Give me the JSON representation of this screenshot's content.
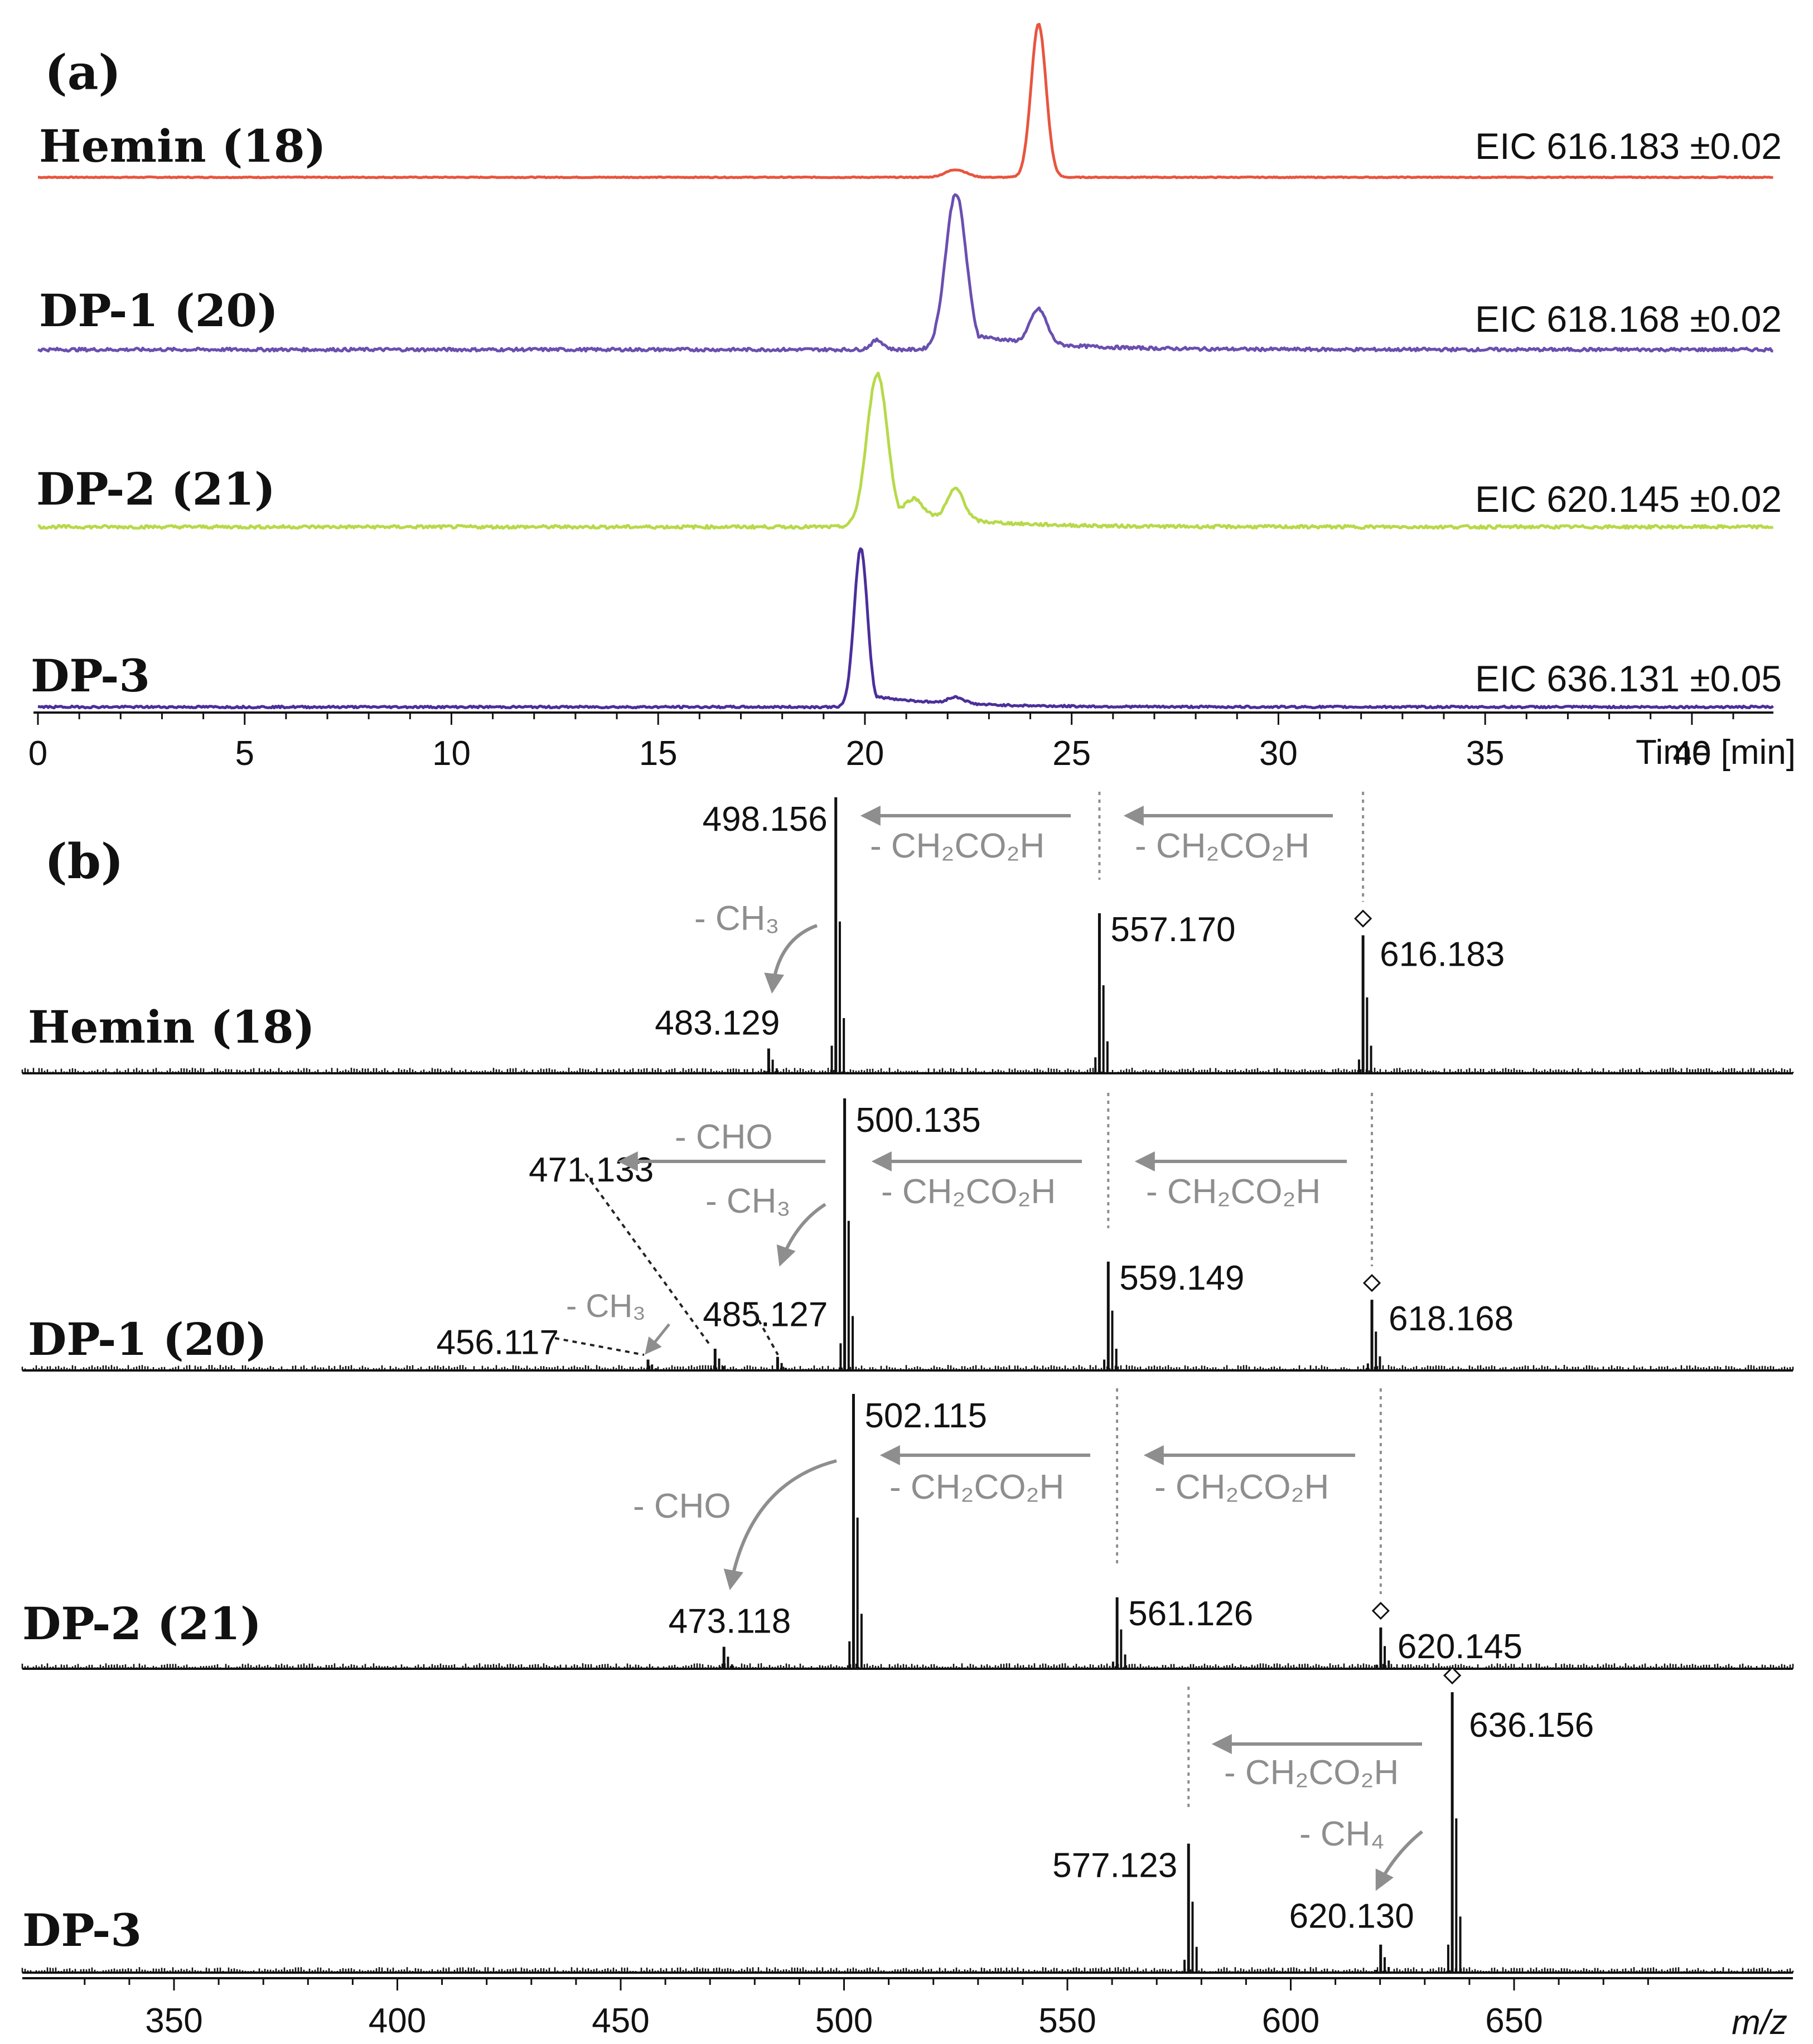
{
  "chart_data": [
    {
      "type": "line",
      "panel_label": "(a)",
      "xlabel": "Time [min]",
      "xlim": [
        0,
        50
      ],
      "x_ticks": [
        "0",
        "5",
        "10",
        "15",
        "20",
        "25",
        "30",
        "35",
        "40"
      ],
      "series": [
        {
          "name": "Hemin (18)",
          "eic": "EIC 616.183 ±0.02",
          "color": "#e8553f",
          "peaks": [
            {
              "rt": 24.2,
              "rel": 1.0,
              "width": 0.18
            },
            {
              "rt": 22.2,
              "rel": 0.05,
              "width": 0.25
            }
          ],
          "noise": 0.006
        },
        {
          "name": "DP-1 (20)",
          "eic": "EIC 618.168 ±0.02",
          "color": "#6a4fb0",
          "peaks": [
            {
              "rt": 22.2,
              "rel": 1.0,
              "width": 0.25
            },
            {
              "rt": 24.2,
              "rel": 0.22,
              "width": 0.2
            },
            {
              "rt": 20.3,
              "rel": 0.06,
              "width": 0.15
            }
          ],
          "tail": 0.12,
          "noise": 0.02
        },
        {
          "name": "DP-2 (21)",
          "eic": "EIC 620.145 ±0.02",
          "color": "#b7d94a",
          "peaks": [
            {
              "rt": 20.3,
              "rel": 1.0,
              "width": 0.25
            },
            {
              "rt": 22.2,
              "rel": 0.2,
              "width": 0.2
            },
            {
              "rt": 21.2,
              "rel": 0.1,
              "width": 0.2
            }
          ],
          "tail": 0.14,
          "noise": 0.02
        },
        {
          "name": "DP-3",
          "eic": "EIC 636.131 ±0.05",
          "color": "#4b2f9a",
          "peaks": [
            {
              "rt": 19.9,
              "rel": 1.0,
              "width": 0.16
            },
            {
              "rt": 22.2,
              "rel": 0.04,
              "width": 0.2
            }
          ],
          "tail": 0.08,
          "noise": 0.012
        }
      ]
    },
    {
      "type": "bar",
      "panel_label": "(b)",
      "xlabel": "m/z",
      "xlim": [
        320,
        680
      ],
      "x_ticks": [
        "350",
        "400",
        "450",
        "500",
        "550",
        "600",
        "650"
      ],
      "spectra": [
        {
          "name": "Hemin (18)",
          "peaks": [
            {
              "mz": 498.156,
              "rel": 1.0,
              "label": "498.156"
            },
            {
              "mz": 557.17,
              "rel": 0.58,
              "label": "557.170"
            },
            {
              "mz": 616.183,
              "rel": 0.5,
              "label": "616.183",
              "precursor": true
            },
            {
              "mz": 483.129,
              "rel": 0.09,
              "label": "483.129"
            }
          ],
          "arrows": [
            "- CH₂CO₂H",
            "- CH₂CO₂H"
          ],
          "curved": "- CH₃"
        },
        {
          "name": "DP-1 (20)",
          "peaks": [
            {
              "mz": 500.135,
              "rel": 1.0,
              "label": "500.135"
            },
            {
              "mz": 559.149,
              "rel": 0.4,
              "label": "559.149"
            },
            {
              "mz": 618.168,
              "rel": 0.26,
              "label": "618.168",
              "precursor": true
            },
            {
              "mz": 485.127,
              "rel": 0.05,
              "label": "485.127"
            },
            {
              "mz": 471.133,
              "rel": 0.08,
              "label": "471.133"
            },
            {
              "mz": 456.117,
              "rel": 0.04,
              "label": "456.117"
            }
          ],
          "arrows": [
            "- CHO",
            "- CH₂CO₂H",
            "- CH₂CO₂H"
          ],
          "curved": [
            "- CH₃",
            "- CH₃"
          ]
        },
        {
          "name": "DP-2 (21)",
          "peaks": [
            {
              "mz": 502.115,
              "rel": 1.0,
              "label": "502.115"
            },
            {
              "mz": 561.126,
              "rel": 0.26,
              "label": "561.126"
            },
            {
              "mz": 620.145,
              "rel": 0.15,
              "label": "620.145",
              "precursor": true
            },
            {
              "mz": 473.118,
              "rel": 0.08,
              "label": "473.118"
            }
          ],
          "arrows": [
            "- CH₂CO₂H",
            "- CH₂CO₂H"
          ],
          "curved": "- CHO"
        },
        {
          "name": "DP-3",
          "peaks": [
            {
              "mz": 636.156,
              "rel": 1.0,
              "label": "636.156",
              "precursor": true
            },
            {
              "mz": 577.123,
              "rel": 0.46,
              "label": "577.123"
            },
            {
              "mz": 620.13,
              "rel": 0.1,
              "label": "620.130"
            }
          ],
          "arrows": [
            "- CH₂CO₂H"
          ],
          "curved": "- CH₄"
        }
      ]
    }
  ],
  "text": {
    "panel_a": "(a)",
    "panel_b": "(b)",
    "time_label": "Time [min]",
    "mz_label": "m/z"
  }
}
